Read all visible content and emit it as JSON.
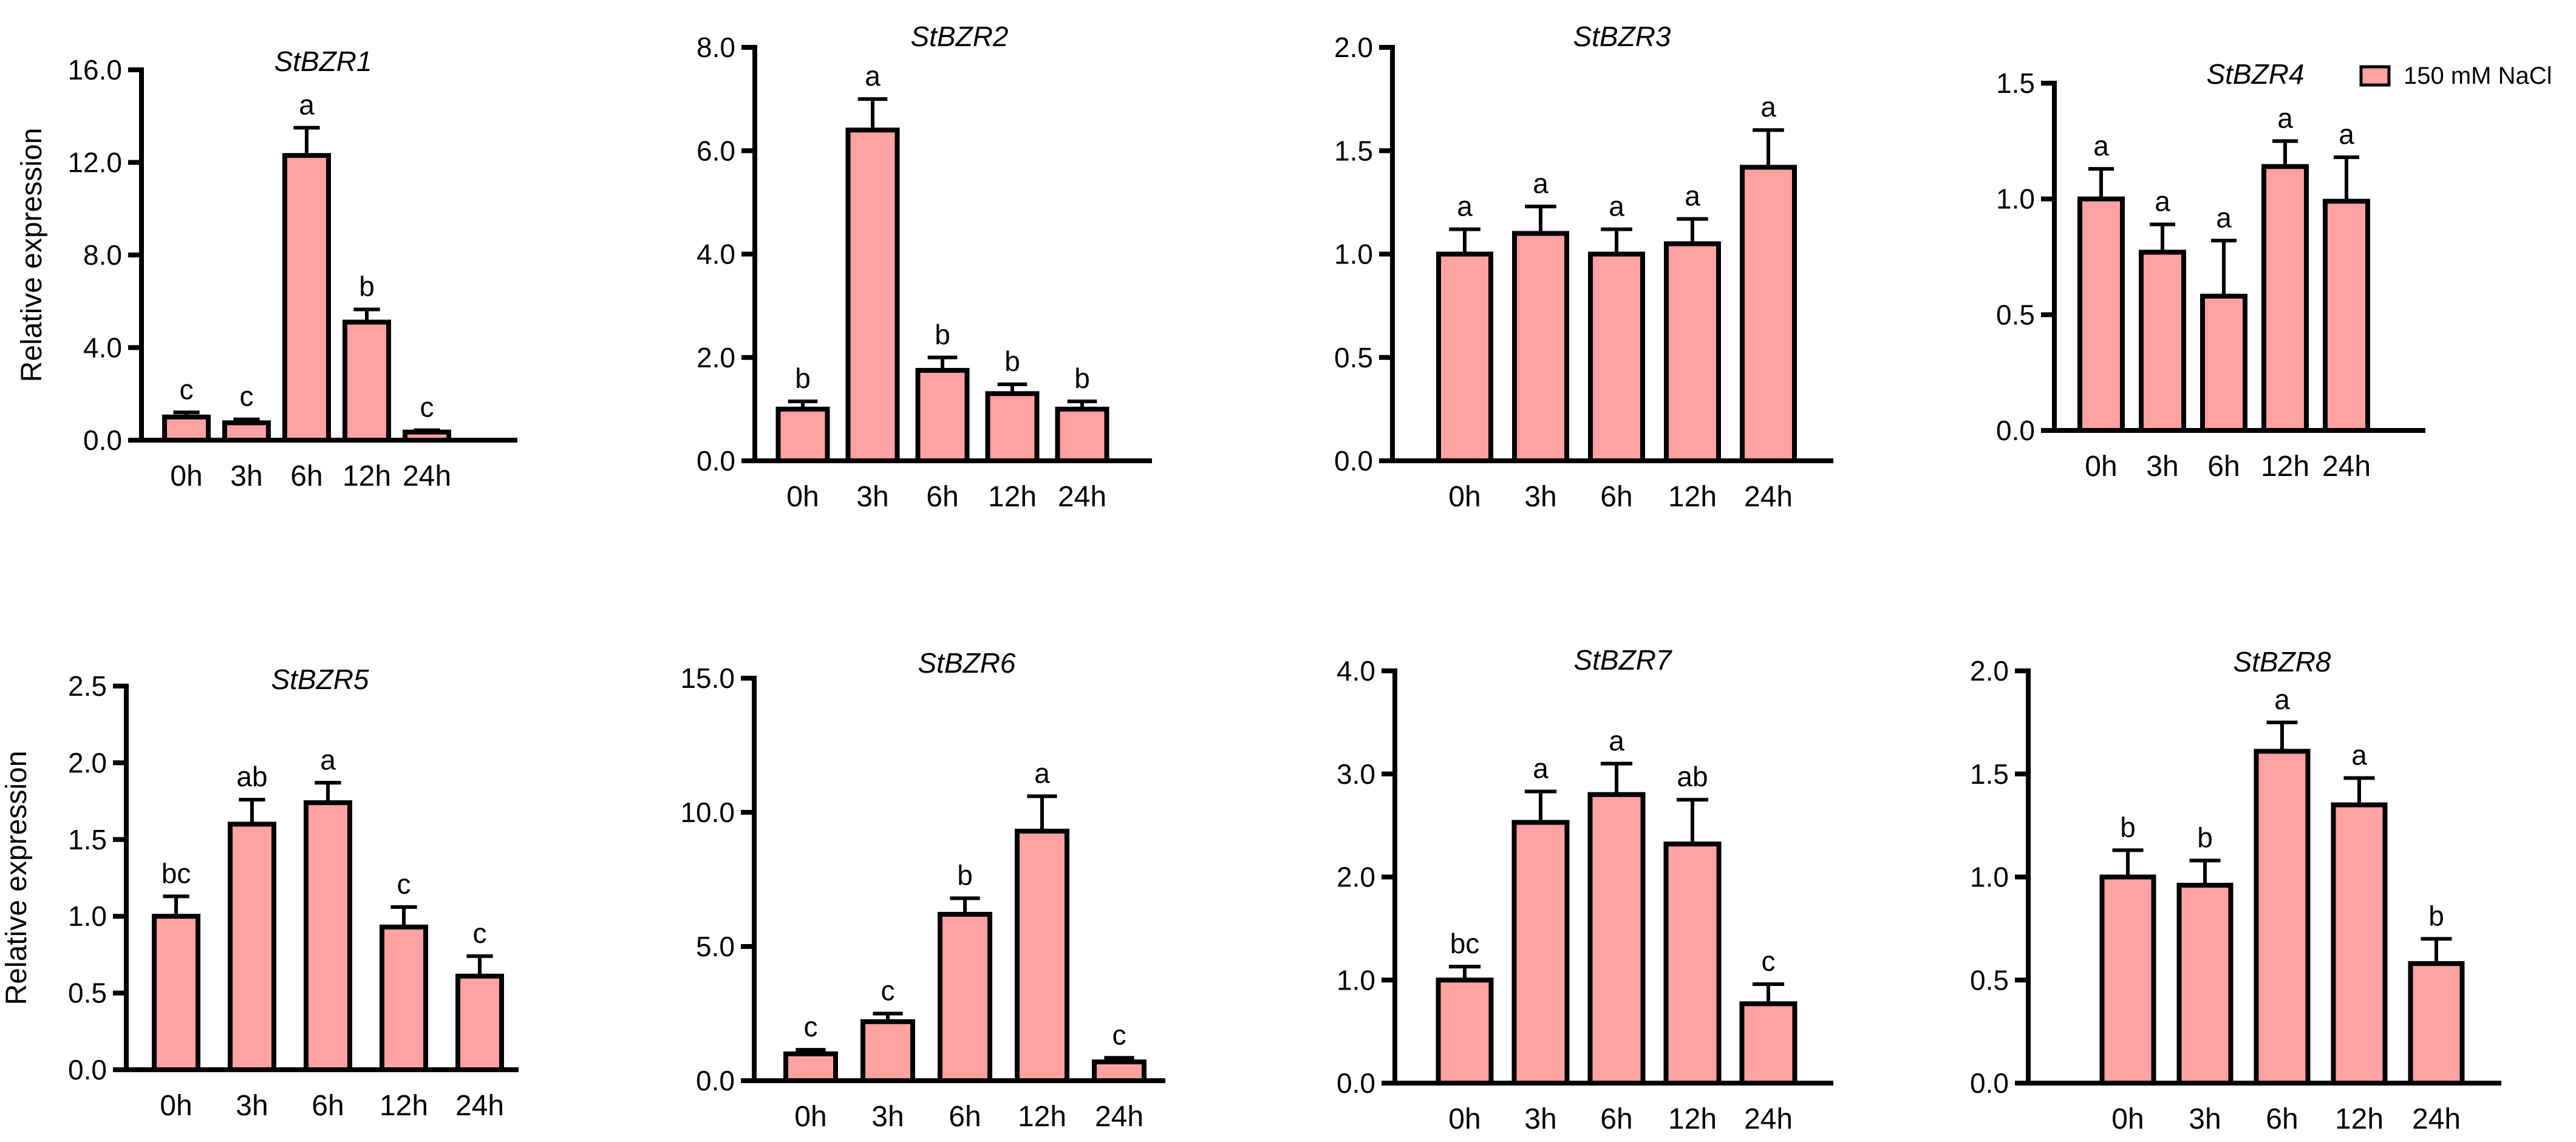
{
  "legend": {
    "label": "150 mM NaCl",
    "color": "#FFA2A2"
  },
  "colors": {
    "bar_fill": "#FFA2A2",
    "stroke": "#000000"
  },
  "y_axis_title": "Relative expression",
  "chart_data": [
    {
      "type": "bar",
      "title": "StBZR1",
      "ylabel": "Relative expression",
      "categories": [
        "0h",
        "3h",
        "6h",
        "12h",
        "24h"
      ],
      "ylim": [
        0,
        16
      ],
      "yticks": [
        0,
        4,
        8,
        12,
        16
      ],
      "ytick_labels": [
        "0.0",
        "4.0",
        "8.0",
        "12.0",
        "16.0"
      ],
      "values": [
        1.0,
        0.75,
        12.3,
        5.1,
        0.35
      ],
      "errors": [
        0.2,
        0.15,
        1.2,
        0.55,
        0.08
      ],
      "significance": [
        "c",
        "c",
        "a",
        "b",
        "c"
      ]
    },
    {
      "type": "bar",
      "title": "StBZR2",
      "ylabel": "",
      "categories": [
        "0h",
        "3h",
        "6h",
        "12h",
        "24h"
      ],
      "ylim": [
        0,
        8
      ],
      "yticks": [
        0,
        2,
        4,
        6,
        8
      ],
      "ytick_labels": [
        "0.0",
        "2.0",
        "4.0",
        "6.0",
        "8.0"
      ],
      "values": [
        1.0,
        6.4,
        1.75,
        1.3,
        1.0
      ],
      "errors": [
        0.15,
        0.6,
        0.25,
        0.18,
        0.15
      ],
      "significance": [
        "b",
        "a",
        "b",
        "b",
        "b"
      ]
    },
    {
      "type": "bar",
      "title": "StBZR3",
      "ylabel": "",
      "categories": [
        "0h",
        "3h",
        "6h",
        "12h",
        "24h"
      ],
      "ylim": [
        0,
        2
      ],
      "yticks": [
        0,
        0.5,
        1,
        1.5,
        2
      ],
      "ytick_labels": [
        "0.0",
        "0.5",
        "1.0",
        "1.5",
        "2.0"
      ],
      "values": [
        1.0,
        1.1,
        1.0,
        1.05,
        1.42
      ],
      "errors": [
        0.12,
        0.13,
        0.12,
        0.12,
        0.18
      ],
      "significance": [
        "a",
        "a",
        "a",
        "a",
        "a"
      ]
    },
    {
      "type": "bar",
      "title": "StBZR4",
      "ylabel": "",
      "categories": [
        "0h",
        "3h",
        "6h",
        "12h",
        "24h"
      ],
      "ylim": [
        0,
        1.5
      ],
      "yticks": [
        0,
        0.5,
        1,
        1.5
      ],
      "ytick_labels": [
        "0.0",
        "0.5",
        "1.0",
        "1.5"
      ],
      "values": [
        1.0,
        0.77,
        0.58,
        1.14,
        0.99
      ],
      "errors": [
        0.13,
        0.12,
        0.24,
        0.11,
        0.19
      ],
      "significance": [
        "a",
        "a",
        "a",
        "a",
        "a"
      ]
    },
    {
      "type": "bar",
      "title": "StBZR5",
      "ylabel": "Relative expression",
      "categories": [
        "0h",
        "3h",
        "6h",
        "12h",
        "24h"
      ],
      "ylim": [
        0,
        2.5
      ],
      "yticks": [
        0,
        0.5,
        1,
        1.5,
        2,
        2.5
      ],
      "ytick_labels": [
        "0.0",
        "0.5",
        "1.0",
        "1.5",
        "2.0",
        "2.5"
      ],
      "values": [
        1.0,
        1.6,
        1.74,
        0.93,
        0.61
      ],
      "errors": [
        0.13,
        0.16,
        0.13,
        0.13,
        0.13
      ],
      "significance": [
        "bc",
        "ab",
        "a",
        "c",
        "c"
      ]
    },
    {
      "type": "bar",
      "title": "StBZR6",
      "ylabel": "",
      "categories": [
        "0h",
        "3h",
        "6h",
        "12h",
        "24h"
      ],
      "ylim": [
        0,
        15
      ],
      "yticks": [
        0,
        5,
        10,
        15
      ],
      "ytick_labels": [
        "0.0",
        "5.0",
        "10.0",
        "15.0"
      ],
      "values": [
        1.0,
        2.2,
        6.2,
        9.3,
        0.7
      ],
      "errors": [
        0.15,
        0.3,
        0.6,
        1.3,
        0.15
      ],
      "significance": [
        "c",
        "c",
        "b",
        "a",
        "c"
      ]
    },
    {
      "type": "bar",
      "title": "StBZR7",
      "ylabel": "",
      "categories": [
        "0h",
        "3h",
        "6h",
        "12h",
        "24h"
      ],
      "ylim": [
        0,
        4
      ],
      "yticks": [
        0,
        1,
        2,
        3,
        4
      ],
      "ytick_labels": [
        "0.0",
        "1.0",
        "2.0",
        "3.0",
        "4.0"
      ],
      "values": [
        1.0,
        2.53,
        2.8,
        2.32,
        0.77
      ],
      "errors": [
        0.13,
        0.3,
        0.3,
        0.43,
        0.19
      ],
      "significance": [
        "bc",
        "a",
        "a",
        "ab",
        "c"
      ]
    },
    {
      "type": "bar",
      "title": "StBZR8",
      "ylabel": "",
      "categories": [
        "0h",
        "3h",
        "6h",
        "12h",
        "24h"
      ],
      "ylim": [
        0,
        2
      ],
      "yticks": [
        0,
        0.5,
        1,
        1.5,
        2
      ],
      "ytick_labels": [
        "0.0",
        "0.5",
        "1.0",
        "1.5",
        "2.0"
      ],
      "values": [
        1.0,
        0.96,
        1.61,
        1.35,
        0.58
      ],
      "errors": [
        0.13,
        0.12,
        0.14,
        0.13,
        0.12
      ],
      "significance": [
        "b",
        "b",
        "a",
        "a",
        "b"
      ]
    }
  ]
}
